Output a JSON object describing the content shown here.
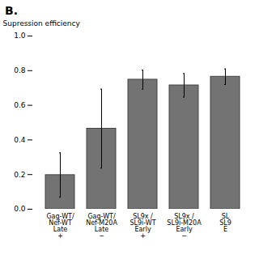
{
  "chart_data": {
    "type": "bar",
    "title": "B.",
    "ylabel": "Supression efficiency",
    "categories": [
      "Gag-WT/\nNef-WT\nLate\n+",
      "Gag-WT/\nNef-M20A\nLate\n−",
      "SL9x /\nSL9i-WT\nEarly\n+",
      "SL9x /\nSL9i-M20A\nEarly\n−",
      "SL\nSL9\nE"
    ],
    "values": [
      0.197,
      0.465,
      0.748,
      0.715,
      0.765
    ],
    "errors": [
      0.128,
      0.228,
      0.055,
      0.068,
      0.045
    ],
    "color": "#737373",
    "ylim": [
      0.0,
      1.0
    ],
    "yticks": [
      {
        "value": 0.0,
        "label": "0.0"
      },
      0.2,
      0.4,
      0.6,
      0.8,
      {
        "value": 1.0,
        "label": "1.0"
      }
    ],
    "grid": false
  }
}
